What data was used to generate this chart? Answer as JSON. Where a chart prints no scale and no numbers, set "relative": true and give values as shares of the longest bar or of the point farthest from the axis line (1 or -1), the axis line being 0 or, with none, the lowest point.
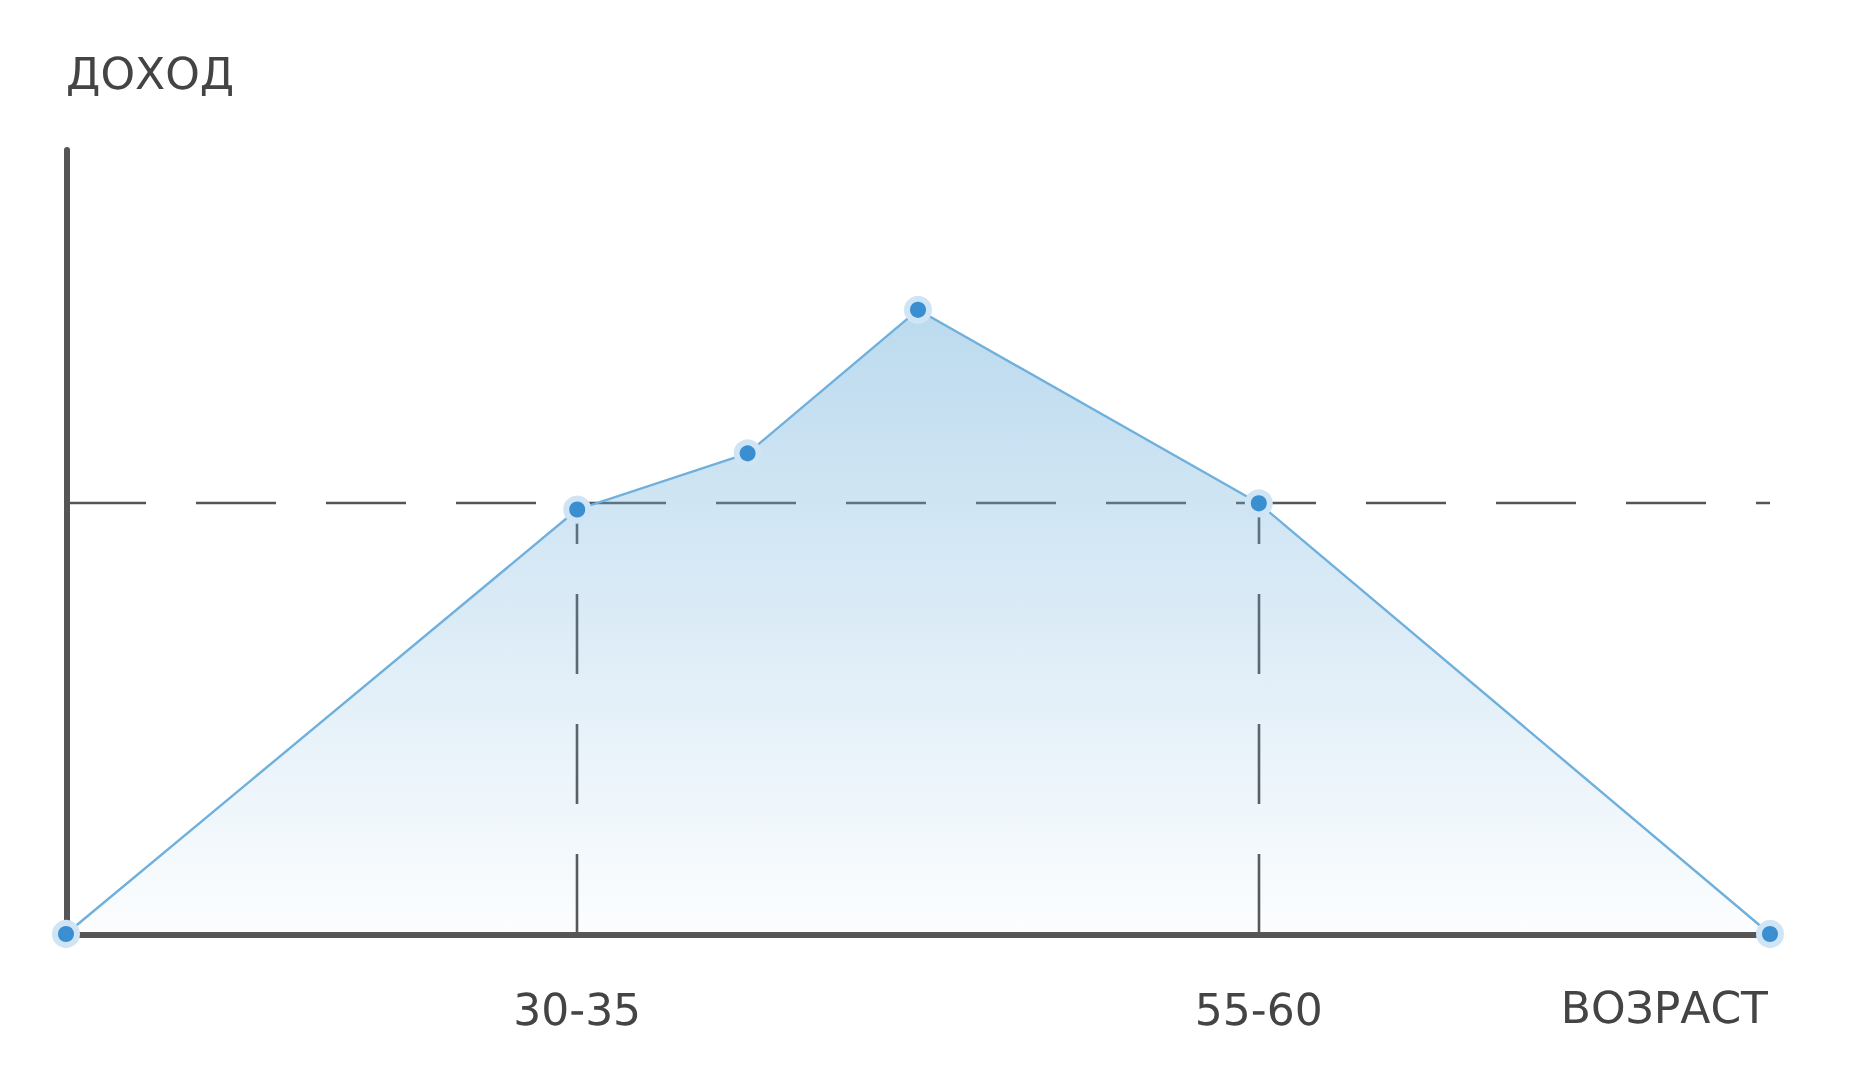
{
  "chart_data": {
    "type": "area",
    "relative": true,
    "ylabel": "ДОХОД",
    "xlabel": "ВОЗРАСТ",
    "categories": [
      null,
      null,
      null,
      "30-35",
      null,
      null,
      null,
      "55-60",
      null,
      null,
      null
    ],
    "series": [
      {
        "color": "#6fb0dc",
        "values": [
          0,
          null,
          null,
          0.68,
          0.77,
          1,
          null,
          0.69,
          null,
          null,
          0
        ]
      }
    ],
    "marker": "circle",
    "grid": false,
    "ref_lines": [
      {
        "axis": "y",
        "value": 0.69,
        "color": "#555555",
        "line_style": "dashed"
      },
      {
        "axis": "x",
        "value": "30-35",
        "color": "#555555",
        "line_style": "dashed"
      },
      {
        "axis": "x",
        "value": "55-60",
        "color": "#555555",
        "line_style": "dashed"
      }
    ]
  }
}
